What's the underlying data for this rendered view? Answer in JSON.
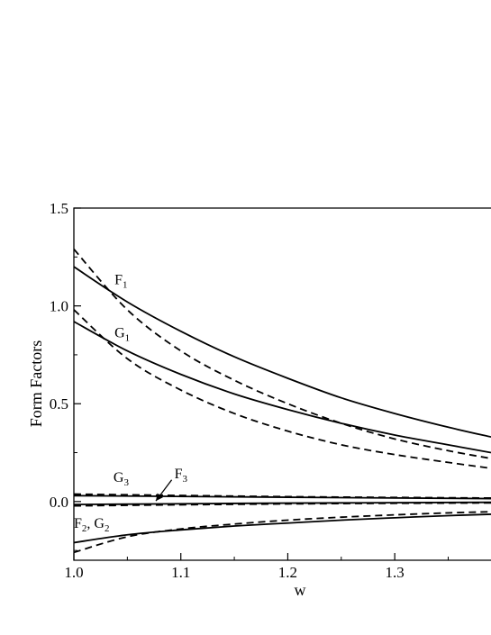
{
  "chart_data": {
    "type": "line",
    "xlabel": "w",
    "ylabel": "Form Factors",
    "xlim": [
      1.0,
      1.39
    ],
    "ylim": [
      -0.3,
      1.5
    ],
    "xticks": [
      {
        "value": 1.0,
        "label": "1.0"
      },
      {
        "value": 1.1,
        "label": "1.1"
      },
      {
        "value": 1.2,
        "label": "1.2"
      },
      {
        "value": 1.3,
        "label": "1.3"
      }
    ],
    "yticks": [
      {
        "value": 0.0,
        "label": "0.0"
      },
      {
        "value": 0.5,
        "label": "0.5"
      },
      {
        "value": 1.0,
        "label": "1.0"
      },
      {
        "value": 1.5,
        "label": "1.5"
      }
    ],
    "grid": false,
    "legend": "none",
    "series": [
      {
        "key": "f1_solid",
        "style": "solid",
        "x": [
          1.0,
          1.05,
          1.1,
          1.15,
          1.2,
          1.25,
          1.3,
          1.35,
          1.39
        ],
        "y": [
          1.2,
          1.02,
          0.87,
          0.74,
          0.63,
          0.53,
          0.45,
          0.38,
          0.33
        ]
      },
      {
        "key": "f1_dashed",
        "style": "dashed",
        "x": [
          1.0,
          1.05,
          1.1,
          1.15,
          1.2,
          1.25,
          1.3,
          1.35,
          1.39
        ],
        "y": [
          1.29,
          0.98,
          0.77,
          0.62,
          0.5,
          0.4,
          0.32,
          0.26,
          0.22
        ]
      },
      {
        "key": "g1_solid",
        "style": "solid",
        "x": [
          1.0,
          1.05,
          1.1,
          1.15,
          1.2,
          1.25,
          1.3,
          1.35,
          1.39
        ],
        "y": [
          0.92,
          0.77,
          0.65,
          0.55,
          0.47,
          0.4,
          0.34,
          0.29,
          0.25
        ]
      },
      {
        "key": "g1_dashed",
        "style": "dashed",
        "x": [
          1.0,
          1.05,
          1.1,
          1.15,
          1.2,
          1.25,
          1.3,
          1.35,
          1.39
        ],
        "y": [
          0.98,
          0.73,
          0.57,
          0.45,
          0.36,
          0.29,
          0.24,
          0.2,
          0.17
        ]
      },
      {
        "key": "g3_solid",
        "style": "solid",
        "x": [
          1.0,
          1.2,
          1.39
        ],
        "y": [
          0.03,
          0.022,
          0.015
        ]
      },
      {
        "key": "g3_dashed",
        "style": "dashed",
        "x": [
          1.0,
          1.2,
          1.39
        ],
        "y": [
          0.038,
          0.025,
          0.018
        ]
      },
      {
        "key": "f3_solid",
        "style": "solid",
        "x": [
          1.0,
          1.2,
          1.39
        ],
        "y": [
          -0.015,
          -0.008,
          -0.004
        ]
      },
      {
        "key": "f3_dashed",
        "style": "dashed",
        "x": [
          1.0,
          1.2,
          1.39
        ],
        "y": [
          -0.022,
          -0.012,
          -0.007
        ]
      },
      {
        "key": "f2g2_solid",
        "style": "solid",
        "x": [
          1.0,
          1.05,
          1.1,
          1.15,
          1.2,
          1.25,
          1.3,
          1.35,
          1.39
        ],
        "y": [
          -0.21,
          -0.17,
          -0.145,
          -0.125,
          -0.11,
          -0.095,
          -0.083,
          -0.072,
          -0.065
        ]
      },
      {
        "key": "f2g2_dashed",
        "style": "dashed",
        "x": [
          1.0,
          1.05,
          1.1,
          1.15,
          1.2,
          1.25,
          1.3,
          1.35,
          1.39
        ],
        "y": [
          -0.26,
          -0.18,
          -0.14,
          -0.115,
          -0.095,
          -0.08,
          -0.068,
          -0.058,
          -0.052
        ]
      }
    ],
    "annotations": [
      {
        "key": "F1",
        "text": "F",
        "sub": "1",
        "x": 1.038,
        "y": 1.11
      },
      {
        "key": "G1",
        "text": "G",
        "sub": "1",
        "x": 1.038,
        "y": 0.84
      },
      {
        "key": "G3",
        "text": "G",
        "sub": "3",
        "x": 1.037,
        "y": 0.1
      },
      {
        "key": "F3",
        "text": "F",
        "sub": "3",
        "x": 1.094,
        "y": 0.12,
        "arrow_to": [
          1.075,
          -0.015
        ]
      },
      {
        "key": "F2G2",
        "text": "F",
        "sub": "2",
        "text2": ", G",
        "sub2": "2",
        "x": 1.0,
        "y": -0.135
      }
    ]
  }
}
